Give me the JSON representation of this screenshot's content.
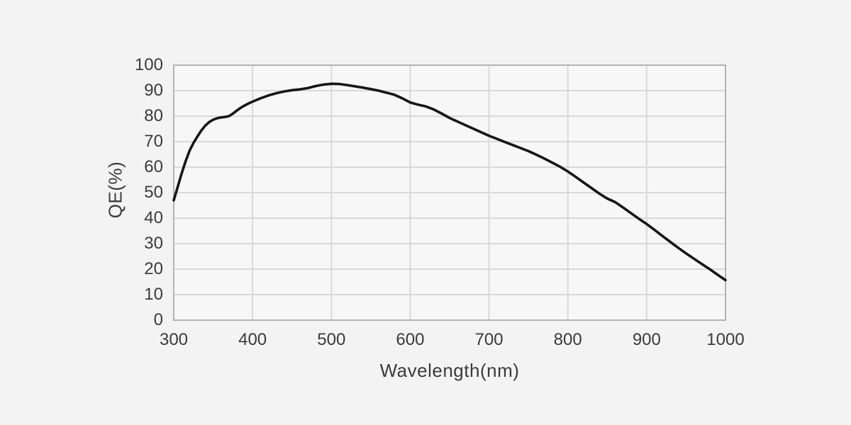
{
  "chart_data": {
    "type": "line",
    "xlabel": "Wavelength(nm)",
    "ylabel": "QE(%)",
    "xlim": [
      300,
      1000
    ],
    "ylim": [
      0,
      100
    ],
    "xticks": [
      300,
      400,
      500,
      600,
      700,
      800,
      900,
      1000
    ],
    "yticks": [
      0,
      10,
      20,
      30,
      40,
      50,
      60,
      70,
      80,
      90,
      100
    ],
    "grid": true,
    "legend": "none",
    "series": [
      {
        "name": "QE curve",
        "color": "#161616",
        "points": [
          [
            300,
            47.0
          ],
          [
            305,
            52.3
          ],
          [
            310,
            57.5
          ],
          [
            315,
            62.3
          ],
          [
            320,
            66.4
          ],
          [
            325,
            69.5
          ],
          [
            330,
            72.0
          ],
          [
            335,
            74.4
          ],
          [
            340,
            76.3
          ],
          [
            345,
            77.7
          ],
          [
            350,
            78.6
          ],
          [
            355,
            79.2
          ],
          [
            360,
            79.5
          ],
          [
            365,
            79.7
          ],
          [
            370,
            80.0
          ],
          [
            375,
            81.0
          ],
          [
            380,
            82.2
          ],
          [
            385,
            83.3
          ],
          [
            390,
            84.2
          ],
          [
            395,
            85.0
          ],
          [
            400,
            85.7
          ],
          [
            410,
            87.0
          ],
          [
            420,
            88.1
          ],
          [
            430,
            89.0
          ],
          [
            440,
            89.7
          ],
          [
            450,
            90.2
          ],
          [
            460,
            90.5
          ],
          [
            470,
            91.0
          ],
          [
            480,
            91.8
          ],
          [
            490,
            92.4
          ],
          [
            500,
            92.7
          ],
          [
            510,
            92.6
          ],
          [
            520,
            92.2
          ],
          [
            530,
            91.7
          ],
          [
            540,
            91.2
          ],
          [
            550,
            90.6
          ],
          [
            560,
            90.0
          ],
          [
            570,
            89.2
          ],
          [
            580,
            88.4
          ],
          [
            590,
            87.0
          ],
          [
            600,
            85.4
          ],
          [
            610,
            84.5
          ],
          [
            620,
            83.8
          ],
          [
            630,
            82.6
          ],
          [
            640,
            81.0
          ],
          [
            650,
            79.3
          ],
          [
            660,
            77.9
          ],
          [
            670,
            76.5
          ],
          [
            680,
            75.1
          ],
          [
            690,
            73.7
          ],
          [
            700,
            72.3
          ],
          [
            710,
            71.1
          ],
          [
            720,
            69.9
          ],
          [
            730,
            68.7
          ],
          [
            740,
            67.5
          ],
          [
            750,
            66.3
          ],
          [
            760,
            64.9
          ],
          [
            770,
            63.4
          ],
          [
            780,
            61.8
          ],
          [
            790,
            60.2
          ],
          [
            800,
            58.3
          ],
          [
            810,
            56.2
          ],
          [
            820,
            54.0
          ],
          [
            830,
            51.8
          ],
          [
            840,
            49.6
          ],
          [
            850,
            47.7
          ],
          [
            860,
            46.3
          ],
          [
            870,
            44.2
          ],
          [
            880,
            42.0
          ],
          [
            890,
            39.8
          ],
          [
            900,
            37.7
          ],
          [
            910,
            35.4
          ],
          [
            920,
            33.0
          ],
          [
            930,
            30.7
          ],
          [
            940,
            28.4
          ],
          [
            950,
            26.2
          ],
          [
            960,
            24.1
          ],
          [
            970,
            22.0
          ],
          [
            980,
            20.0
          ],
          [
            990,
            17.8
          ],
          [
            1000,
            15.7
          ]
        ]
      }
    ]
  },
  "colors": {
    "page_bg": "#f3f3f3",
    "plot_bg": "#f7f7f7",
    "gridline": "#d9d9d9",
    "plot_border": "#b3b3b3",
    "curve": "#161616",
    "text": "#3b3b3b"
  }
}
